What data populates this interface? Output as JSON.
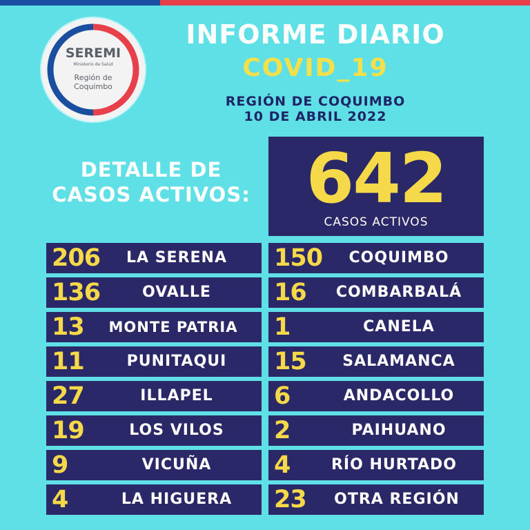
{
  "logo": {
    "title": "SEREMI",
    "subtitle": "Ministerio de Salud",
    "region": "Región de Coquimbo"
  },
  "header": {
    "title": "INFORME DIARIO",
    "subtitle": "COVID_19",
    "region": "REGIÓN DE COQUIMBO",
    "date": "10 DE ABRIL 2022"
  },
  "detalle": {
    "line1": "DETALLE DE",
    "line2": "CASOS ACTIVOS:"
  },
  "total": {
    "value": "642",
    "label": "CASOS ACTIVOS"
  },
  "communes": [
    {
      "value": "206",
      "name": "LA SERENA"
    },
    {
      "value": "150",
      "name": "COQUIMBO"
    },
    {
      "value": "136",
      "name": "OVALLE"
    },
    {
      "value": "16",
      "name": "COMBARBALÁ"
    },
    {
      "value": "13",
      "name": "MONTE PATRIA"
    },
    {
      "value": "1",
      "name": "CANELA"
    },
    {
      "value": "11",
      "name": "PUNITAQUI"
    },
    {
      "value": "15",
      "name": "SALAMANCA"
    },
    {
      "value": "27",
      "name": "ILLAPEL"
    },
    {
      "value": "6",
      "name": "ANDACOLLO"
    },
    {
      "value": "19",
      "name": "LOS VILOS"
    },
    {
      "value": "2",
      "name": "PAIHUANO"
    },
    {
      "value": "9",
      "name": "VICUÑA"
    },
    {
      "value": "4",
      "name": "RÍO HURTADO"
    },
    {
      "value": "4",
      "name": "LA HIGUERA"
    },
    {
      "value": "23",
      "name": "OTRA REGIÓN"
    }
  ],
  "colors": {
    "background": "#5ee0e6",
    "panel": "#2b2867",
    "number": "#f5d948",
    "accent_blue": "#1a4fa0",
    "accent_red": "#e8404a"
  }
}
